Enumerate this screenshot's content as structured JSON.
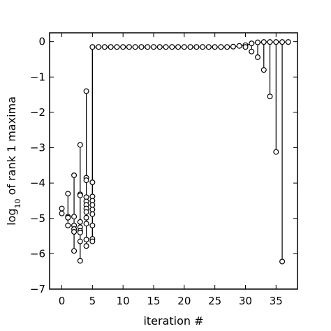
{
  "chart_data": {
    "type": "scatter",
    "title": "",
    "xlabel": "iteration #",
    "ylabel_parts": {
      "prefix": "log",
      "subscript": "10",
      "suffix": " of rank 1 maxima"
    },
    "xlim": [
      -2,
      38.5
    ],
    "ylim": [
      -7,
      0.25
    ],
    "xticks": [
      0,
      5,
      10,
      15,
      20,
      25,
      30,
      35
    ],
    "yticks": [
      0,
      -1,
      -2,
      -3,
      -4,
      -5,
      -6,
      -7
    ],
    "grid": false,
    "legend": false,
    "marker": "open-circle",
    "stems": [
      {
        "x": 0,
        "top": -4.72,
        "bottom": -4.86
      },
      {
        "x": 1,
        "top": -4.3,
        "bottom": -5.2
      },
      {
        "x": 2,
        "top": -3.78,
        "bottom": -5.92
      },
      {
        "x": 3,
        "top": -2.92,
        "bottom": -6.2
      },
      {
        "x": 4,
        "top": -1.4,
        "bottom": -5.78
      },
      {
        "x": 5,
        "top": -0.15,
        "bottom": -5.65
      },
      {
        "x": 30,
        "top": -0.1,
        "bottom": -0.15
      },
      {
        "x": 31,
        "top": -0.05,
        "bottom": -0.28
      },
      {
        "x": 32,
        "top": -0.02,
        "bottom": -0.44
      },
      {
        "x": 33,
        "top": -0.01,
        "bottom": -0.8
      },
      {
        "x": 34,
        "top": -0.01,
        "bottom": -1.55
      },
      {
        "x": 35,
        "top": -0.01,
        "bottom": -3.12
      },
      {
        "x": 36,
        "top": -0.01,
        "bottom": -6.22
      }
    ],
    "connector": [
      {
        "x": 5,
        "y": -5.65
      },
      {
        "x": 5,
        "y": -0.15
      }
    ],
    "points": [
      {
        "x": 0,
        "y": -4.72
      },
      {
        "x": 0,
        "y": -4.86
      },
      {
        "x": 1,
        "y": -4.3
      },
      {
        "x": 1,
        "y": -4.95
      },
      {
        "x": 1,
        "y": -4.98
      },
      {
        "x": 1,
        "y": -5.2
      },
      {
        "x": 2,
        "y": -3.78
      },
      {
        "x": 2,
        "y": -4.95
      },
      {
        "x": 2,
        "y": -5.2
      },
      {
        "x": 2,
        "y": -5.3
      },
      {
        "x": 2,
        "y": -5.38
      },
      {
        "x": 2,
        "y": -5.92
      },
      {
        "x": 3,
        "y": -2.92
      },
      {
        "x": 3,
        "y": -4.32
      },
      {
        "x": 3,
        "y": -4.35
      },
      {
        "x": 3,
        "y": -5.1
      },
      {
        "x": 3,
        "y": -5.25
      },
      {
        "x": 3,
        "y": -5.35
      },
      {
        "x": 3,
        "y": -5.4
      },
      {
        "x": 3,
        "y": -5.65
      },
      {
        "x": 3,
        "y": -6.2
      },
      {
        "x": 4,
        "y": -1.4
      },
      {
        "x": 4,
        "y": -3.85
      },
      {
        "x": 4,
        "y": -3.92
      },
      {
        "x": 4,
        "y": -4.4
      },
      {
        "x": 4,
        "y": -4.52
      },
      {
        "x": 4,
        "y": -4.62
      },
      {
        "x": 4,
        "y": -4.72
      },
      {
        "x": 4,
        "y": -4.82
      },
      {
        "x": 4,
        "y": -4.98
      },
      {
        "x": 4,
        "y": -5.15
      },
      {
        "x": 4,
        "y": -5.6
      },
      {
        "x": 4,
        "y": -5.78
      },
      {
        "x": 5,
        "y": -3.98
      },
      {
        "x": 5,
        "y": -4.38
      },
      {
        "x": 5,
        "y": -4.5
      },
      {
        "x": 5,
        "y": -4.62
      },
      {
        "x": 5,
        "y": -4.75
      },
      {
        "x": 5,
        "y": -4.88
      },
      {
        "x": 5,
        "y": -5.2
      },
      {
        "x": 5,
        "y": -5.58
      },
      {
        "x": 5,
        "y": -5.65
      },
      {
        "x": 5,
        "y": -0.15
      },
      {
        "x": 6,
        "y": -0.15
      },
      {
        "x": 7,
        "y": -0.15
      },
      {
        "x": 8,
        "y": -0.15
      },
      {
        "x": 9,
        "y": -0.15
      },
      {
        "x": 10,
        "y": -0.15
      },
      {
        "x": 11,
        "y": -0.15
      },
      {
        "x": 12,
        "y": -0.15
      },
      {
        "x": 13,
        "y": -0.15
      },
      {
        "x": 14,
        "y": -0.15
      },
      {
        "x": 15,
        "y": -0.15
      },
      {
        "x": 16,
        "y": -0.15
      },
      {
        "x": 17,
        "y": -0.15
      },
      {
        "x": 18,
        "y": -0.15
      },
      {
        "x": 19,
        "y": -0.15
      },
      {
        "x": 20,
        "y": -0.15
      },
      {
        "x": 21,
        "y": -0.15
      },
      {
        "x": 22,
        "y": -0.15
      },
      {
        "x": 23,
        "y": -0.15
      },
      {
        "x": 24,
        "y": -0.15
      },
      {
        "x": 25,
        "y": -0.15
      },
      {
        "x": 26,
        "y": -0.15
      },
      {
        "x": 27,
        "y": -0.15
      },
      {
        "x": 28,
        "y": -0.14
      },
      {
        "x": 29,
        "y": -0.12
      },
      {
        "x": 30,
        "y": -0.1
      },
      {
        "x": 30,
        "y": -0.15
      },
      {
        "x": 31,
        "y": -0.05
      },
      {
        "x": 31,
        "y": -0.28
      },
      {
        "x": 32,
        "y": -0.02
      },
      {
        "x": 32,
        "y": -0.44
      },
      {
        "x": 33,
        "y": -0.01
      },
      {
        "x": 33,
        "y": -0.8
      },
      {
        "x": 34,
        "y": -0.01
      },
      {
        "x": 34,
        "y": -1.55
      },
      {
        "x": 35,
        "y": -0.01
      },
      {
        "x": 35,
        "y": -3.12
      },
      {
        "x": 36,
        "y": -0.01
      },
      {
        "x": 36,
        "y": -6.22
      },
      {
        "x": 37,
        "y": -0.01
      }
    ]
  }
}
